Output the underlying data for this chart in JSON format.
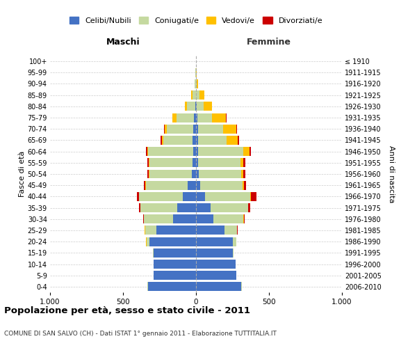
{
  "age_groups": [
    "0-4",
    "5-9",
    "10-14",
    "15-19",
    "20-24",
    "25-29",
    "30-34",
    "35-39",
    "40-44",
    "45-49",
    "50-54",
    "55-59",
    "60-64",
    "65-69",
    "70-74",
    "75-79",
    "80-84",
    "85-89",
    "90-94",
    "95-99",
    "100+"
  ],
  "birth_years": [
    "2006-2010",
    "2001-2005",
    "1996-2000",
    "1991-1995",
    "1986-1990",
    "1981-1985",
    "1976-1980",
    "1971-1975",
    "1966-1970",
    "1961-1965",
    "1956-1960",
    "1951-1955",
    "1946-1950",
    "1941-1945",
    "1936-1940",
    "1931-1935",
    "1926-1930",
    "1921-1925",
    "1916-1920",
    "1911-1915",
    "≤ 1910"
  ],
  "males": {
    "celibi": [
      330,
      290,
      290,
      290,
      320,
      270,
      155,
      130,
      90,
      55,
      30,
      25,
      20,
      25,
      20,
      15,
      5,
      0,
      0,
      0,
      0
    ],
    "coniugati": [
      2,
      2,
      2,
      5,
      20,
      80,
      200,
      250,
      300,
      290,
      290,
      295,
      310,
      200,
      180,
      120,
      55,
      25,
      8,
      3,
      1
    ],
    "vedovi": [
      0,
      0,
      0,
      0,
      2,
      2,
      2,
      2,
      2,
      2,
      2,
      3,
      5,
      8,
      15,
      25,
      15,
      10,
      3,
      1,
      0
    ],
    "divorziati": [
      0,
      0,
      0,
      0,
      0,
      2,
      5,
      8,
      12,
      8,
      12,
      12,
      10,
      8,
      5,
      0,
      0,
      0,
      0,
      0,
      0
    ]
  },
  "females": {
    "nubili": [
      310,
      275,
      270,
      250,
      250,
      195,
      120,
      100,
      60,
      30,
      20,
      15,
      15,
      15,
      15,
      10,
      5,
      2,
      0,
      0,
      0
    ],
    "coniugate": [
      2,
      2,
      2,
      5,
      25,
      85,
      205,
      255,
      310,
      290,
      290,
      290,
      310,
      195,
      170,
      100,
      45,
      20,
      5,
      2,
      1
    ],
    "vedove": [
      0,
      0,
      0,
      0,
      2,
      2,
      2,
      3,
      5,
      8,
      12,
      20,
      40,
      75,
      90,
      95,
      60,
      35,
      10,
      2,
      0
    ],
    "divorziate": [
      0,
      0,
      0,
      0,
      0,
      3,
      8,
      12,
      40,
      15,
      15,
      12,
      12,
      8,
      5,
      3,
      0,
      0,
      0,
      0,
      0
    ]
  },
  "colors": {
    "celibi": "#4472c4",
    "coniugati": "#c5d9a0",
    "vedovi": "#ffc000",
    "divorziati": "#cc0000"
  },
  "xlim": 1000,
  "title": "Popolazione per età, sesso e stato civile - 2011",
  "subtitle": "COMUNE DI SAN SALVO (CH) - Dati ISTAT 1° gennaio 2011 - Elaborazione TUTTITALIA.IT",
  "xlabel_left": "Maschi",
  "xlabel_right": "Femmine",
  "ylabel_left": "Fasce di età",
  "ylabel_right": "Anni di nascita",
  "bg_color": "#ffffff",
  "grid_color": "#cccccc"
}
